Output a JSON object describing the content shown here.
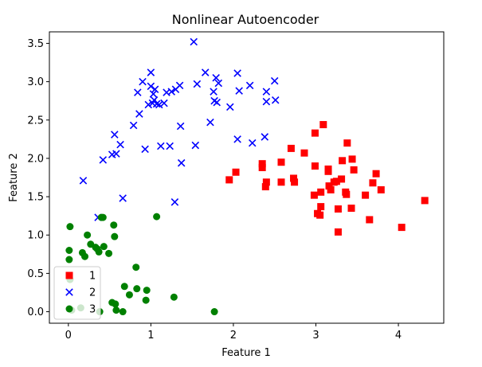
{
  "chart_data": {
    "type": "scatter",
    "title": "Nonlinear Autoencoder",
    "xlabel": "Feature 1",
    "ylabel": "Feature 2",
    "xlim": [
      -0.23,
      4.55
    ],
    "ylim": [
      -0.15,
      3.65
    ],
    "xticks": [
      0,
      1,
      2,
      3,
      4
    ],
    "xtick_labels": [
      "0",
      "1",
      "2",
      "3",
      "4"
    ],
    "yticks": [
      0.0,
      0.5,
      1.0,
      1.5,
      2.0,
      2.5,
      3.0,
      3.5
    ],
    "ytick_labels": [
      "0.0",
      "0.5",
      "1.0",
      "1.5",
      "2.0",
      "2.5",
      "3.0",
      "3.5"
    ],
    "grid": false,
    "legend_position": "lower-left",
    "series": [
      {
        "name": "1",
        "marker": "square",
        "color": "#ff0000",
        "points": [
          [
            1.95,
            1.72
          ],
          [
            2.03,
            1.82
          ],
          [
            2.35,
            1.93
          ],
          [
            2.35,
            1.88
          ],
          [
            2.4,
            1.69
          ],
          [
            2.39,
            1.63
          ],
          [
            2.58,
            1.95
          ],
          [
            2.58,
            1.69
          ],
          [
            2.7,
            2.13
          ],
          [
            2.73,
            1.74
          ],
          [
            2.74,
            1.69
          ],
          [
            2.86,
            2.07
          ],
          [
            2.98,
            1.52
          ],
          [
            2.99,
            1.9
          ],
          [
            2.99,
            2.33
          ],
          [
            3.02,
            1.28
          ],
          [
            3.05,
            1.26
          ],
          [
            3.06,
            1.37
          ],
          [
            3.06,
            1.56
          ],
          [
            3.09,
            2.44
          ],
          [
            3.15,
            1.86
          ],
          [
            3.15,
            1.83
          ],
          [
            3.16,
            1.64
          ],
          [
            3.18,
            1.59
          ],
          [
            3.22,
            1.69
          ],
          [
            3.25,
            1.7
          ],
          [
            3.27,
            1.34
          ],
          [
            3.27,
            1.04
          ],
          [
            3.31,
            1.73
          ],
          [
            3.32,
            1.97
          ],
          [
            3.36,
            1.56
          ],
          [
            3.37,
            1.53
          ],
          [
            3.38,
            2.2
          ],
          [
            3.43,
            1.35
          ],
          [
            3.44,
            1.99
          ],
          [
            3.46,
            1.85
          ],
          [
            3.6,
            1.52
          ],
          [
            3.65,
            1.2
          ],
          [
            3.69,
            1.68
          ],
          [
            3.73,
            1.8
          ],
          [
            3.79,
            1.59
          ],
          [
            4.04,
            1.1
          ],
          [
            4.32,
            1.45
          ]
        ]
      },
      {
        "name": "2",
        "marker": "x",
        "color": "#0000ff",
        "points": [
          [
            0.18,
            1.71
          ],
          [
            0.36,
            1.23
          ],
          [
            0.42,
            1.98
          ],
          [
            0.53,
            2.05
          ],
          [
            0.56,
            2.31
          ],
          [
            0.58,
            2.06
          ],
          [
            0.63,
            2.18
          ],
          [
            0.66,
            1.48
          ],
          [
            0.79,
            2.43
          ],
          [
            0.84,
            2.86
          ],
          [
            0.86,
            2.58
          ],
          [
            0.9,
            3.0
          ],
          [
            0.93,
            2.12
          ],
          [
            0.97,
            2.7
          ],
          [
            1.0,
            3.12
          ],
          [
            1.0,
            2.94
          ],
          [
            1.02,
            2.72
          ],
          [
            1.03,
            2.84
          ],
          [
            1.04,
            2.76
          ],
          [
            1.05,
            2.9
          ],
          [
            1.07,
            2.71
          ],
          [
            1.1,
            2.7
          ],
          [
            1.12,
            2.16
          ],
          [
            1.16,
            2.72
          ],
          [
            1.19,
            2.86
          ],
          [
            1.23,
            2.16
          ],
          [
            1.25,
            2.87
          ],
          [
            1.29,
            1.43
          ],
          [
            1.3,
            2.9
          ],
          [
            1.35,
            2.95
          ],
          [
            1.36,
            2.42
          ],
          [
            1.37,
            1.94
          ],
          [
            1.52,
            3.52
          ],
          [
            1.54,
            2.17
          ],
          [
            1.56,
            2.97
          ],
          [
            1.66,
            3.12
          ],
          [
            1.72,
            2.47
          ],
          [
            1.76,
            2.87
          ],
          [
            1.77,
            2.75
          ],
          [
            1.79,
            3.05
          ],
          [
            1.8,
            2.73
          ],
          [
            1.82,
            2.98
          ],
          [
            1.96,
            2.67
          ],
          [
            2.05,
            2.25
          ],
          [
            2.05,
            3.11
          ],
          [
            2.07,
            2.88
          ],
          [
            2.2,
            2.95
          ],
          [
            2.23,
            2.2
          ],
          [
            2.38,
            2.28
          ],
          [
            2.4,
            2.87
          ],
          [
            2.4,
            2.74
          ],
          [
            2.5,
            3.01
          ],
          [
            2.51,
            2.76
          ]
        ]
      },
      {
        "name": "3",
        "marker": "circle",
        "color": "#008000",
        "points": [
          [
            0.02,
            1.11
          ],
          [
            0.01,
            0.8
          ],
          [
            0.01,
            0.68
          ],
          [
            0.02,
            0.42
          ],
          [
            0.04,
            0.02
          ],
          [
            0.15,
            0.05
          ],
          [
            0.17,
            0.77
          ],
          [
            0.2,
            0.72
          ],
          [
            0.23,
            1.0
          ],
          [
            0.27,
            0.88
          ],
          [
            0.33,
            0.84
          ],
          [
            0.35,
            0.82
          ],
          [
            0.37,
            0.78
          ],
          [
            0.38,
            0.0
          ],
          [
            0.4,
            1.23
          ],
          [
            0.42,
            1.23
          ],
          [
            0.43,
            0.85
          ],
          [
            0.49,
            0.76
          ],
          [
            0.53,
            0.12
          ],
          [
            0.55,
            1.13
          ],
          [
            0.56,
            0.98
          ],
          [
            0.57,
            0.1
          ],
          [
            0.58,
            0.02
          ],
          [
            0.66,
            0.0
          ],
          [
            0.68,
            0.33
          ],
          [
            0.74,
            0.22
          ],
          [
            0.82,
            0.58
          ],
          [
            0.83,
            0.3
          ],
          [
            0.94,
            0.15
          ],
          [
            0.95,
            0.28
          ],
          [
            1.07,
            1.24
          ],
          [
            1.28,
            0.19
          ],
          [
            1.77,
            0.0
          ]
        ]
      }
    ]
  }
}
